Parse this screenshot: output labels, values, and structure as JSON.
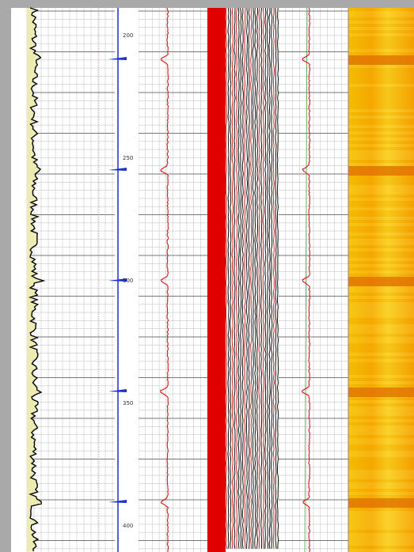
{
  "depth_labels": [
    "200",
    "250",
    "300",
    "350",
    "400"
  ]
}
